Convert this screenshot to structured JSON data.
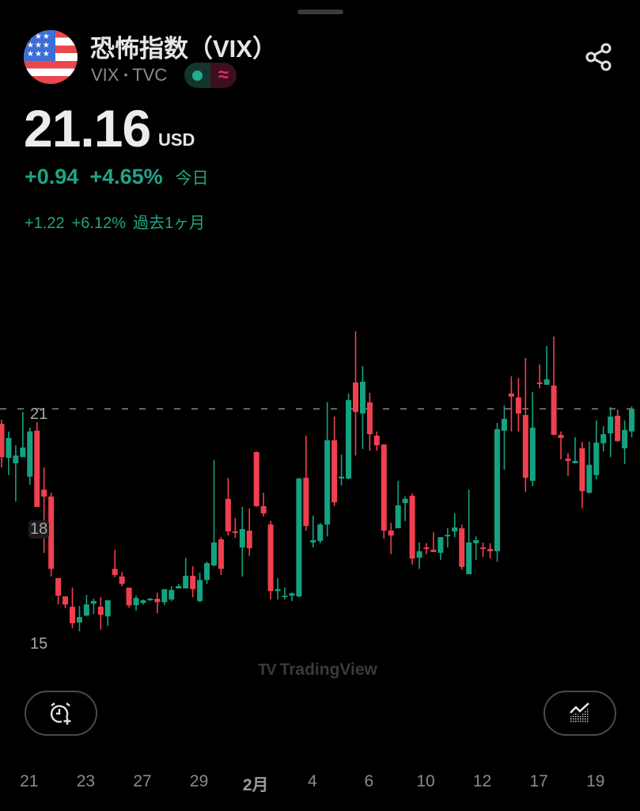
{
  "header": {
    "title": "恐怖指数（VIX）",
    "symbol": "VIX",
    "separator": "•",
    "exchange": "TVC",
    "market_status_icon": "market-open-dot",
    "delayed_icon": "approx-icon",
    "share_icon": "share-icon"
  },
  "quote": {
    "price": "21.16",
    "currency": "USD",
    "change_today": "+0.94",
    "change_today_pct": "+4.65%",
    "today_label": "今日",
    "change_month": "+1.22",
    "change_month_pct": "+6.12%",
    "month_label": "過去1ヶ月"
  },
  "colors": {
    "up": "#14a281",
    "down": "#f0404f",
    "background": "#000000"
  },
  "watermark": "TradingView",
  "buttons": {
    "add_alert_icon": "alarm-plus-icon",
    "chart_type_icon": "area-chart-icon"
  },
  "chart_data": {
    "type": "candlestick",
    "y_ticks": [
      "21",
      "18",
      "15"
    ],
    "x_ticks": [
      "21",
      "23",
      "27",
      "29",
      "2月",
      "4",
      "6",
      "10",
      "12",
      "17",
      "19"
    ],
    "last_price_line": 21.16,
    "grid": false,
    "candles": [
      [
        20.77,
        20.88,
        19.63,
        19.9
      ],
      [
        19.88,
        20.57,
        19.43,
        20.4
      ],
      [
        19.74,
        20.21,
        18.74,
        19.94
      ],
      [
        19.9,
        21.08,
        19.9,
        20.15
      ],
      [
        19.39,
        20.67,
        19.18,
        20.57
      ],
      [
        20.59,
        20.81,
        18.6,
        18.6
      ],
      [
        19.05,
        19.63,
        17.4,
        18.87
      ],
      [
        18.87,
        18.97,
        16.78,
        16.98
      ],
      [
        16.74,
        16.74,
        16.05,
        16.28
      ],
      [
        16.26,
        16.26,
        15.95,
        16.05
      ],
      [
        15.99,
        16.49,
        15.43,
        15.56
      ],
      [
        15.58,
        16.01,
        15.35,
        15.72
      ],
      [
        15.76,
        16.3,
        15.74,
        16.05
      ],
      [
        16.07,
        16.2,
        15.8,
        16.14
      ],
      [
        15.99,
        16.24,
        15.39,
        15.78
      ],
      [
        15.74,
        16.16,
        15.49,
        16.16
      ],
      [
        16.98,
        17.48,
        16.76,
        16.82
      ],
      [
        16.78,
        16.9,
        16.53,
        16.59
      ],
      [
        16.49,
        16.49,
        15.97,
        16.03
      ],
      [
        16.03,
        16.28,
        15.89,
        16.22
      ],
      [
        16.09,
        16.18,
        16.05,
        16.16
      ],
      [
        16.16,
        16.22,
        16.14,
        16.2
      ],
      [
        16.2,
        16.36,
        15.82,
        16.11
      ],
      [
        16.11,
        16.45,
        16.03,
        16.45
      ],
      [
        16.18,
        16.53,
        16.14,
        16.43
      ],
      [
        16.47,
        16.59,
        16.47,
        16.53
      ],
      [
        16.47,
        17.27,
        16.47,
        16.8
      ],
      [
        16.8,
        17.05,
        16.24,
        16.45
      ],
      [
        16.14,
        16.88,
        16.11,
        16.69
      ],
      [
        16.69,
        17.17,
        16.59,
        17.13
      ],
      [
        17.07,
        19.82,
        17.05,
        17.67
      ],
      [
        17.75,
        17.81,
        16.82,
        16.98
      ],
      [
        18.81,
        19.36,
        17.85,
        17.96
      ],
      [
        17.96,
        18.31,
        17.79,
        17.92
      ],
      [
        17.54,
        18.6,
        16.78,
        18.02
      ],
      [
        17.98,
        18.56,
        17.32,
        17.52
      ],
      [
        20.03,
        20.05,
        18.6,
        18.62
      ],
      [
        18.62,
        18.97,
        18.35,
        18.43
      ],
      [
        18.14,
        18.23,
        16.18,
        16.4
      ],
      [
        16.4,
        16.74,
        16.18,
        16.45
      ],
      [
        16.26,
        16.49,
        16.18,
        16.28
      ],
      [
        16.28,
        16.36,
        16.14,
        16.34
      ],
      [
        16.26,
        19.36,
        16.24,
        19.34
      ],
      [
        19.36,
        20.46,
        17.98,
        18.1
      ],
      [
        17.67,
        18.37,
        17.54,
        17.73
      ],
      [
        17.71,
        18.18,
        17.65,
        18.14
      ],
      [
        18.14,
        21.33,
        17.83,
        20.34
      ],
      [
        20.34,
        20.96,
        18.62,
        18.72
      ],
      [
        19.34,
        19.97,
        19.16,
        19.39
      ],
      [
        19.34,
        21.56,
        19.32,
        21.39
      ],
      [
        21.85,
        23.19,
        19.94,
        21.08
      ],
      [
        21.04,
        22.28,
        20.11,
        21.87
      ],
      [
        21.33,
        21.58,
        20.07,
        20.5
      ],
      [
        20.46,
        20.57,
        20.07,
        20.21
      ],
      [
        20.23,
        20.23,
        17.77,
        17.98
      ],
      [
        17.98,
        18.18,
        17.36,
        17.85
      ],
      [
        18.04,
        19.28,
        18.04,
        18.64
      ],
      [
        18.7,
        18.87,
        18.23,
        18.81
      ],
      [
        18.89,
        18.95,
        17.09,
        17.25
      ],
      [
        17.27,
        17.67,
        16.98,
        17.44
      ],
      [
        17.54,
        17.65,
        17.36,
        17.5
      ],
      [
        17.48,
        17.94,
        17.42,
        17.42
      ],
      [
        17.4,
        17.81,
        17.21,
        17.81
      ],
      [
        17.83,
        18.04,
        17.54,
        17.87
      ],
      [
        17.96,
        18.43,
        17.81,
        18.06
      ],
      [
        18.04,
        18.14,
        16.96,
        17.03
      ],
      [
        16.84,
        19.05,
        16.84,
        17.67
      ],
      [
        17.65,
        17.83,
        17.21,
        17.73
      ],
      [
        17.54,
        17.67,
        17.29,
        17.5
      ],
      [
        17.5,
        17.65,
        17.25,
        17.44
      ],
      [
        17.44,
        20.79,
        17.17,
        20.63
      ],
      [
        20.59,
        21.25,
        19.57,
        20.9
      ],
      [
        21.56,
        22.01,
        20.57,
        21.48
      ],
      [
        21.46,
        21.97,
        20.57,
        21.04
      ],
      [
        21.0,
        22.49,
        18.99,
        19.36
      ],
      [
        19.28,
        21.6,
        19.14,
        20.67
      ],
      [
        21.85,
        22.32,
        21.7,
        21.81
      ],
      [
        21.79,
        22.8,
        21.79,
        21.93
      ],
      [
        21.77,
        23.05,
        20.48,
        20.48
      ],
      [
        20.48,
        20.57,
        19.84,
        20.4
      ],
      [
        19.86,
        20.01,
        19.41,
        19.8
      ],
      [
        19.74,
        20.42,
        19.74,
        19.8
      ],
      [
        20.13,
        20.3,
        18.56,
        19.01
      ],
      [
        18.97,
        20.3,
        18.95,
        19.7
      ],
      [
        19.43,
        20.86,
        19.32,
        20.28
      ],
      [
        20.26,
        20.71,
        20.05,
        20.5
      ],
      [
        20.52,
        21.21,
        19.9,
        20.96
      ],
      [
        20.98,
        21.14,
        20.3,
        20.32
      ],
      [
        20.13,
        20.86,
        19.72,
        20.61
      ],
      [
        20.57,
        21.23,
        20.42,
        21.16
      ]
    ]
  }
}
